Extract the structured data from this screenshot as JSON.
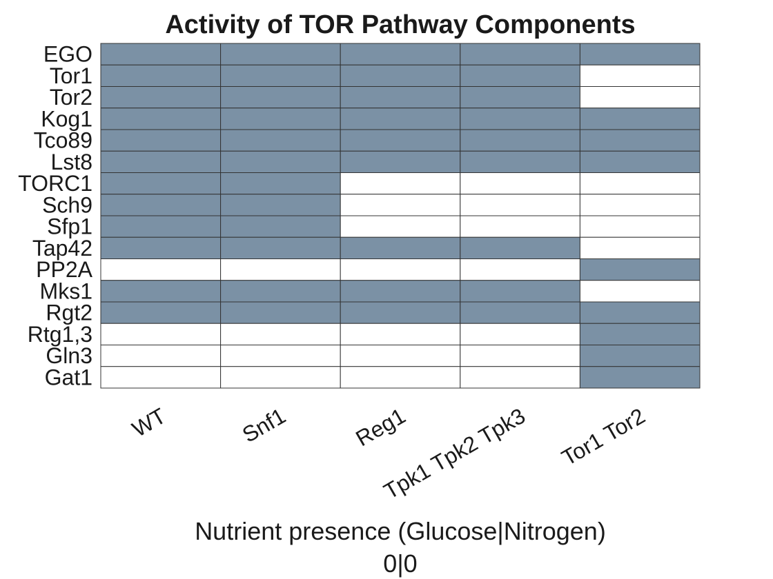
{
  "colors": {
    "active": "#7b91a5",
    "inactive": "#ffffff",
    "grid": "#333333",
    "text": "#1a1a1a"
  },
  "chart_data": {
    "type": "heatmap",
    "title": "Activity of TOR Pathway Components",
    "xlabel": "Nutrient presence (Glucose|Nitrogen)",
    "xlabel_sub": "0|0",
    "ylabel": "",
    "legend": "none",
    "grid": true,
    "columns": [
      "WT",
      "Snf1",
      "Reg1",
      "Tpk1 Tpk2 Tpk3",
      "Tor1 Tor2"
    ],
    "rows": [
      "EGO",
      "Tor1",
      "Tor2",
      "Kog1",
      "Tco89",
      "Lst8",
      "TORC1",
      "Sch9",
      "Sfp1",
      "Tap42",
      "PP2A",
      "Mks1",
      "Rgt2",
      "Rtg1,3",
      "Gln3",
      "Gat1"
    ],
    "values": [
      [
        1,
        1,
        1,
        1,
        1
      ],
      [
        1,
        1,
        1,
        1,
        0
      ],
      [
        1,
        1,
        1,
        1,
        0
      ],
      [
        1,
        1,
        1,
        1,
        1
      ],
      [
        1,
        1,
        1,
        1,
        1
      ],
      [
        1,
        1,
        1,
        1,
        1
      ],
      [
        1,
        1,
        0,
        0,
        0
      ],
      [
        1,
        1,
        0,
        0,
        0
      ],
      [
        1,
        1,
        0,
        0,
        0
      ],
      [
        1,
        1,
        1,
        1,
        0
      ],
      [
        0,
        0,
        0,
        0,
        1
      ],
      [
        1,
        1,
        1,
        1,
        0
      ],
      [
        1,
        1,
        1,
        1,
        1
      ],
      [
        0,
        0,
        0,
        0,
        1
      ],
      [
        0,
        0,
        0,
        0,
        1
      ],
      [
        0,
        0,
        0,
        0,
        1
      ]
    ]
  }
}
